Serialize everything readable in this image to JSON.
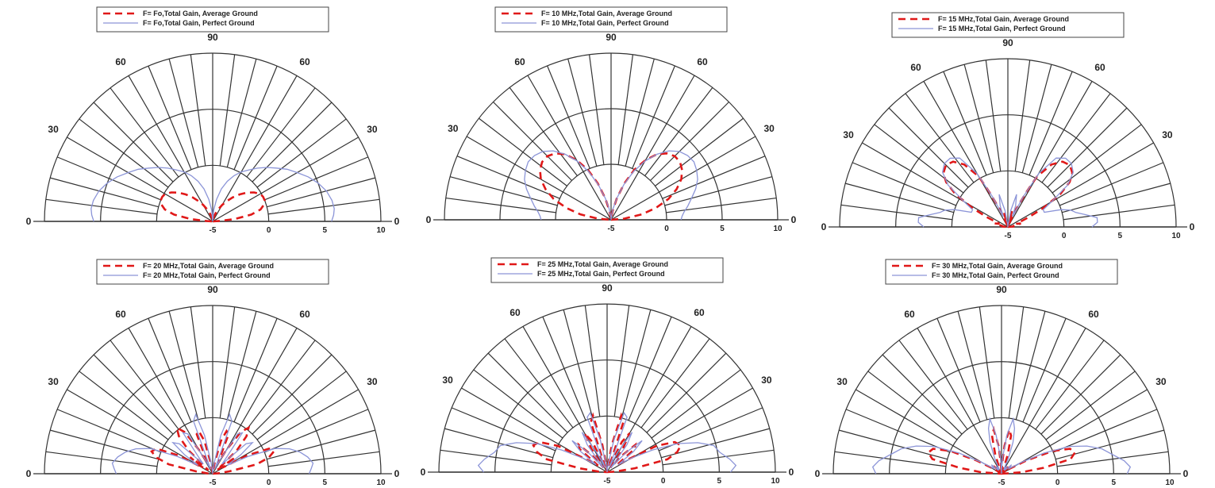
{
  "chart_data": [
    {
      "type": "polar-line",
      "legend": [
        "F= Fo,Total Gain,  Average Ground",
        "F= Fo,Total Gain, Perfect Ground"
      ],
      "angle_labels": [
        "0",
        "30",
        "60",
        "90",
        "60",
        "30",
        "0"
      ],
      "radial_ticks": [
        "-5",
        "0",
        "5",
        "10"
      ],
      "rlim": [
        -5,
        10
      ],
      "colors": {
        "average": "#e01818",
        "perfect": "#8c95d8"
      },
      "series": [
        {
          "name": "Average Ground",
          "style": "dashed",
          "theta": [
            0,
            3,
            6,
            10,
            14,
            18,
            22,
            26,
            30,
            35,
            40,
            45,
            50,
            55,
            60,
            65,
            70,
            75,
            80,
            85,
            88,
            90
          ],
          "r": [
            -5,
            -4.5,
            -3,
            -1.5,
            -0.6,
            -0.2,
            0,
            0,
            -0.1,
            -0.5,
            -1,
            -1.6,
            -2.2,
            -2.8,
            -3.3,
            -3.8,
            -4.2,
            -4.5,
            -4.8,
            -4.95,
            -5,
            -5
          ]
        },
        {
          "name": "Perfect Ground",
          "style": "solid",
          "theta": [
            0,
            3,
            6,
            10,
            15,
            20,
            25,
            30,
            35,
            40,
            45,
            50,
            55,
            60,
            65,
            70,
            75,
            80,
            85,
            90
          ],
          "r": [
            5.6,
            5.8,
            5.9,
            5.8,
            5.5,
            5,
            4.4,
            3.7,
            3.1,
            2.4,
            1.8,
            1.2,
            0.6,
            0.1,
            -0.5,
            -1.2,
            -2,
            -3,
            -4,
            -5
          ]
        }
      ]
    },
    {
      "type": "polar-line",
      "legend": [
        "F= 10 MHz,Total Gain, Average Ground",
        "F= 10 MHz,Total Gain, Perfect Ground"
      ],
      "angle_labels": [
        "0",
        "30",
        "60",
        "90",
        "60",
        "30",
        "0"
      ],
      "radial_ticks": [
        "-5",
        "0",
        "5",
        "10"
      ],
      "rlim": [
        -5,
        10
      ],
      "colors": {
        "average": "#e01818",
        "perfect": "#8c95d8"
      },
      "series": [
        {
          "name": "Average Ground",
          "style": "dashed",
          "theta": [
            0,
            5,
            10,
            15,
            20,
            25,
            30,
            35,
            40,
            45,
            50,
            55,
            60,
            65,
            70,
            75,
            80,
            85,
            90
          ],
          "r": [
            -5,
            -3.8,
            -2.2,
            -0.8,
            0.5,
            1.5,
            2.3,
            2.8,
            3.1,
            3.1,
            2.8,
            2.2,
            1.2,
            0,
            -1.5,
            -3,
            -4.2,
            -4.9,
            -5
          ]
        },
        {
          "name": "Perfect Ground",
          "style": "solid",
          "theta": [
            0,
            3,
            6,
            10,
            15,
            20,
            25,
            30,
            35,
            40,
            45,
            50,
            55,
            60,
            65,
            70,
            75,
            80,
            85,
            90
          ],
          "r": [
            1.3,
            1.4,
            1.6,
            2,
            2.5,
            3.1,
            3.6,
            3.9,
            4.1,
            4,
            3.7,
            3.1,
            2.2,
            1.1,
            -0.2,
            -1.6,
            -3,
            -4,
            -4.7,
            -5
          ]
        }
      ]
    },
    {
      "type": "polar-line",
      "legend": [
        "F= 15 MHz,Total Gain, Average Ground",
        "F= 15 MHz,Total Gain, Perfect Ground"
      ],
      "angle_labels": [
        "0",
        "30",
        "60",
        "90",
        "60",
        "30",
        "0"
      ],
      "radial_ticks": [
        "-5",
        "0",
        "5",
        "10"
      ],
      "rlim": [
        -5,
        10
      ],
      "colors": {
        "average": "#e01818",
        "perfect": "#8c95d8"
      },
      "series": [
        {
          "name": "Average Ground",
          "style": "dashed",
          "theta": [
            0,
            5,
            10,
            15,
            20,
            25,
            28,
            32,
            36,
            40,
            45,
            50,
            55,
            60,
            62,
            66,
            70,
            75,
            80,
            85,
            90
          ],
          "r": [
            -5,
            -4.5,
            -4.5,
            -3.8,
            -4.2,
            -3,
            -1.5,
            0.5,
            1.8,
            2.5,
            2.8,
            2.6,
            1.8,
            0.2,
            -1.5,
            -3.5,
            -4.8,
            -3.5,
            -4.5,
            -5,
            -5
          ]
        },
        {
          "name": "Perfect Ground",
          "style": "solid",
          "theta": [
            0,
            3,
            6,
            9,
            12,
            15,
            18,
            22,
            26,
            30,
            35,
            40,
            45,
            50,
            55,
            60,
            63,
            66,
            70,
            75,
            80,
            85,
            90
          ],
          "r": [
            2.5,
            3,
            3,
            2,
            1.2,
            0.8,
            0,
            -1.5,
            -1.5,
            -0.5,
            1.5,
            2.6,
            3,
            3,
            2.5,
            0.5,
            -2,
            -4,
            -3,
            -2,
            -3.5,
            -4.8,
            -5
          ]
        }
      ]
    },
    {
      "type": "polar-line",
      "legend": [
        "F= 20 MHz,Total Gain, Average Ground",
        "F= 20 MHz,Total Gain, Perfect Ground"
      ],
      "angle_labels": [
        "0",
        "30",
        "60",
        "90",
        "60",
        "30",
        "0"
      ],
      "radial_ticks": [
        "-5",
        "0",
        "5",
        "10"
      ],
      "rlim": [
        -5,
        10
      ],
      "colors": {
        "average": "#e01818",
        "perfect": "#8c95d8"
      },
      "series": [
        {
          "name": "Average Ground",
          "style": "dashed",
          "theta": [
            0,
            5,
            8,
            12,
            16,
            20,
            24,
            28,
            32,
            36,
            40,
            44,
            48,
            52,
            56,
            60,
            64,
            68,
            72,
            76,
            80,
            84,
            88,
            90
          ],
          "r": [
            -5,
            -4.5,
            -3.5,
            -1,
            0.2,
            0.8,
            0.5,
            -1.5,
            -4,
            -2.5,
            -4.5,
            -2,
            -0.5,
            0.2,
            -0.5,
            -2.5,
            -4,
            -1.2,
            -1,
            -2,
            -4,
            -4.8,
            -5,
            -5
          ]
        },
        {
          "name": "Perfect Ground",
          "style": "solid",
          "theta": [
            0,
            3,
            6,
            10,
            14,
            18,
            22,
            26,
            30,
            34,
            38,
            42,
            46,
            50,
            54,
            58,
            62,
            66,
            70,
            74,
            78,
            82,
            86,
            90
          ],
          "r": [
            3.6,
            3.8,
            4,
            3.6,
            3,
            2.2,
            1,
            -1.5,
            -3.5,
            -2,
            -0.5,
            -1,
            -3.8,
            -3,
            -0.5,
            -0.8,
            -3.5,
            -4.5,
            0,
            0.5,
            -1.5,
            -4,
            -4.8,
            -5
          ]
        }
      ]
    },
    {
      "type": "polar-line",
      "legend": [
        "F= 25 MHz,Total Gain, Average Ground",
        "F= 25 MHz,Total Gain, Perfect Ground"
      ],
      "angle_labels": [
        "0",
        "30",
        "60",
        "90",
        "60",
        "30",
        "0"
      ],
      "radial_ticks": [
        "-5",
        "0",
        "5",
        "10"
      ],
      "rlim": [
        -5,
        10
      ],
      "colors": {
        "average": "#e01818",
        "perfect": "#8c95d8"
      },
      "series": [
        {
          "name": "Average Ground",
          "style": "dashed",
          "theta": [
            0,
            4,
            8,
            12,
            16,
            20,
            24,
            28,
            32,
            36,
            40,
            44,
            48,
            52,
            56,
            60,
            64,
            68,
            72,
            76,
            80,
            84,
            88,
            90
          ],
          "r": [
            -5,
            -4.2,
            -2.5,
            0.5,
            1.5,
            2,
            1.6,
            0,
            -3,
            -4,
            -1.8,
            -1.5,
            -3,
            -4.5,
            -2.5,
            -1,
            -2,
            -4.5,
            -0.3,
            0.2,
            -2.5,
            -4.5,
            -5,
            -5
          ]
        },
        {
          "name": "Perfect Ground",
          "style": "solid",
          "theta": [
            0,
            3,
            6,
            10,
            14,
            18,
            22,
            26,
            30,
            34,
            38,
            42,
            46,
            50,
            54,
            58,
            62,
            66,
            70,
            74,
            78,
            82,
            86,
            90
          ],
          "r": [
            6,
            6.5,
            6,
            5.2,
            4.8,
            3.5,
            1.8,
            -0.5,
            -2.5,
            -3.8,
            -2,
            -0.8,
            -2.5,
            -4.5,
            -2,
            -0.8,
            -3,
            -4.5,
            0.2,
            0.5,
            -2,
            -4.2,
            -4.8,
            -5
          ]
        }
      ]
    },
    {
      "type": "polar-line",
      "legend": [
        "F= 30 MHz,Total Gain, Average Ground",
        "F= 30 MHz,Total Gain, Perfect Ground"
      ],
      "angle_labels": [
        "0",
        "30",
        "60",
        "90",
        "60",
        "30",
        "0"
      ],
      "radial_ticks": [
        "-5",
        "0",
        "5",
        "10"
      ],
      "rlim": [
        -5,
        10
      ],
      "colors": {
        "average": "#e01818",
        "perfect": "#8c95d8"
      },
      "series": [
        {
          "name": "Average Ground",
          "style": "dashed",
          "theta": [
            0,
            4,
            8,
            12,
            16,
            20,
            24,
            28,
            32,
            36,
            40,
            44,
            48,
            52,
            56,
            60,
            64,
            68,
            72,
            76,
            80,
            84,
            86,
            88,
            90
          ],
          "r": [
            -5,
            -3.2,
            -1.2,
            1.3,
            1.8,
            1.5,
            0,
            -2.5,
            -4.2,
            -4.8,
            -4.5,
            -4,
            -4.6,
            -4.8,
            -4.5,
            -4.7,
            -4.8,
            -4.5,
            -3.2,
            -1.5,
            -1,
            -2.5,
            -4,
            -4.8,
            -5
          ]
        },
        {
          "name": "Perfect Ground",
          "style": "solid",
          "theta": [
            0,
            3,
            6,
            10,
            14,
            18,
            22,
            26,
            30,
            34,
            38,
            42,
            46,
            50,
            54,
            58,
            62,
            66,
            70,
            74,
            78,
            82,
            86,
            88,
            90
          ],
          "r": [
            6.2,
            6.5,
            6,
            5,
            4.2,
            3,
            1.5,
            -0.8,
            -3,
            -4.2,
            -4,
            -3.8,
            -4.5,
            -4.6,
            -4.2,
            -4.5,
            -4.6,
            -3.5,
            -2,
            -0.8,
            0,
            -1.5,
            -3.5,
            -4.5,
            -5
          ]
        }
      ]
    }
  ]
}
